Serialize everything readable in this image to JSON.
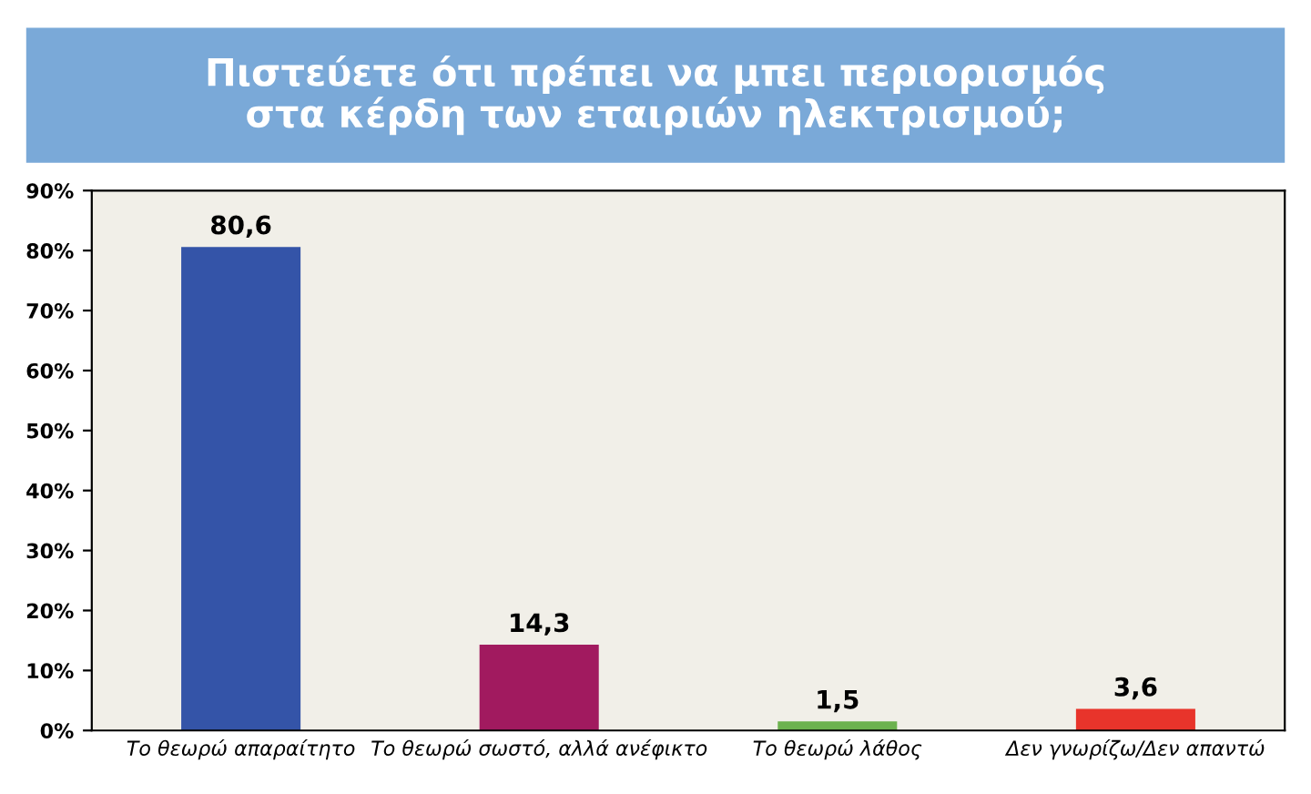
{
  "chart_data": {
    "type": "bar",
    "title": "Πιστεύετε ότι πρέπει να μπει περιορισμός\nστα κέρδη των εταιριών ηλεκτρισμού;",
    "categories": [
      "Το θεωρώ απαραίτητο",
      "Το θεωρώ σωστό, αλλά ανέφικτο",
      "Το θεωρώ λάθος",
      "Δεν γνωρίζω/Δεν απαντώ"
    ],
    "values": [
      80.6,
      14.3,
      1.5,
      3.6
    ],
    "colors": [
      "#3454a8",
      "#a11a5f",
      "#6cb24e",
      "#e8342b"
    ],
    "value_labels": [
      "80,6",
      "14,3",
      "1,5",
      "3,6"
    ],
    "ylim": [
      0,
      90
    ],
    "yticks": [
      {
        "value": 0,
        "label": "0%"
      },
      {
        "value": 10,
        "label": "10%"
      },
      {
        "value": 20,
        "label": "20%"
      },
      {
        "value": 30,
        "label": "30%"
      },
      {
        "value": 40,
        "label": "40%"
      },
      {
        "value": 50,
        "label": "50%"
      },
      {
        "value": 60,
        "label": "60%"
      },
      {
        "value": 70,
        "label": "70%"
      },
      {
        "value": 80,
        "label": "80%"
      },
      {
        "value": 90,
        "label": "90%"
      }
    ],
    "grid": false
  }
}
